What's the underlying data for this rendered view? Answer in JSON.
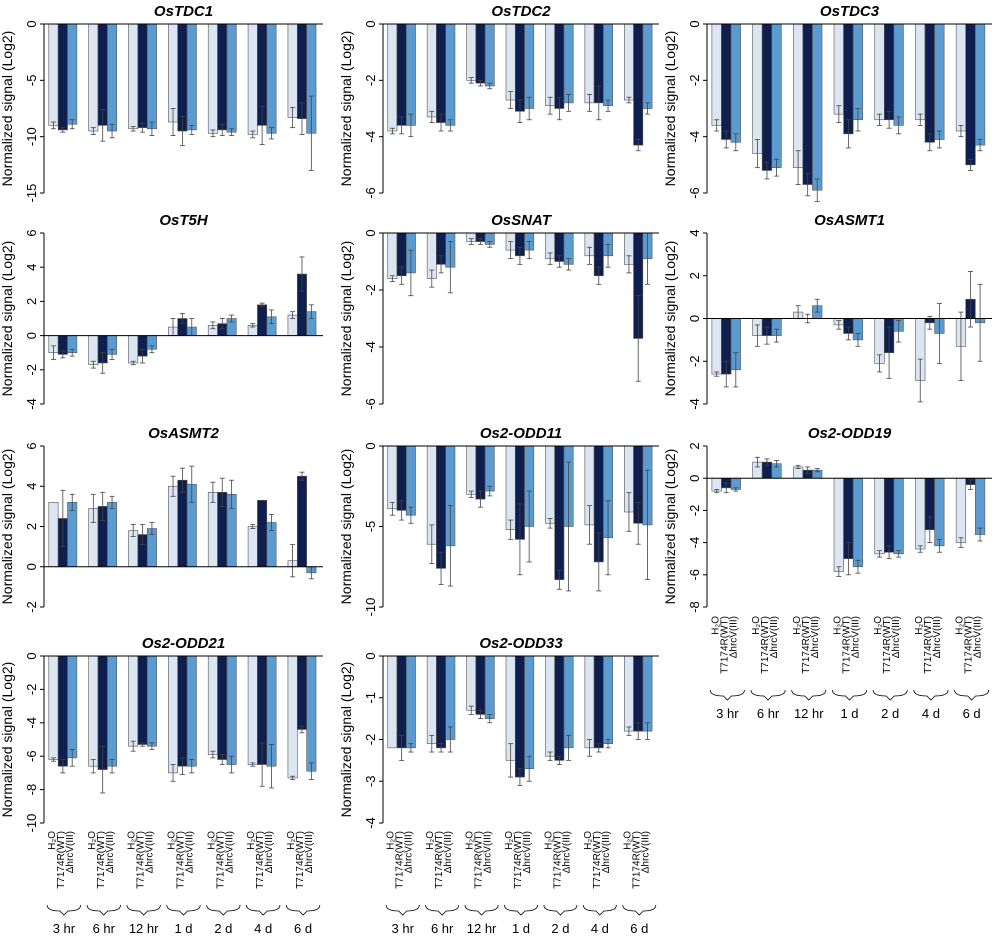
{
  "figure": {
    "colors": {
      "H2O": "#dbe6f2",
      "T7174R_WT": "#0e1f4f",
      "hrcV": "#5b9bd0",
      "border": "#555555",
      "error": "#444444"
    },
    "conditions": [
      "H₂O",
      "T7174R(WT)",
      "ΔhrcV(III)"
    ],
    "timepoints": [
      "3 hr",
      "6 hr",
      "12 hr",
      "1 d",
      "2 d",
      "4 d",
      "6 d"
    ],
    "ylabel": "Normalized signal (Log2)"
  },
  "chart_data": [
    {
      "type": "bar",
      "title": "OsTDC1",
      "ylim": [
        -15,
        0
      ],
      "yticks": [
        0,
        -5,
        -10,
        -15
      ],
      "categories": [
        "3 hr",
        "6 hr",
        "12 hr",
        "1 d",
        "2 d",
        "4 d",
        "6 d"
      ],
      "series": [
        {
          "name": "H2O",
          "values": [
            -9.0,
            -9.5,
            -9.3,
            -8.7,
            -9.7,
            -9.8,
            -8.3
          ],
          "errors": [
            0.3,
            0.3,
            0.2,
            1.2,
            0.3,
            0.3,
            0.9
          ]
        },
        {
          "name": "T7174R(WT)",
          "values": [
            -9.4,
            -9.0,
            -9.2,
            -9.5,
            -9.4,
            -9.0,
            -8.4
          ],
          "errors": [
            0.2,
            1.4,
            0.4,
            1.3,
            0.5,
            1.7,
            1.4
          ]
        },
        {
          "name": "ΔhrcV(III)",
          "values": [
            -8.9,
            -9.5,
            -9.3,
            -9.4,
            -9.6,
            -9.7,
            -9.7
          ],
          "errors": [
            0.4,
            0.6,
            0.6,
            0.4,
            0.3,
            0.5,
            3.3
          ]
        }
      ]
    },
    {
      "type": "bar",
      "title": "OsTDC2",
      "ylim": [
        -6,
        0
      ],
      "yticks": [
        0,
        -2,
        -4,
        -6
      ],
      "categories": [
        "3 hr",
        "6 hr",
        "12 hr",
        "1 d",
        "2 d",
        "4 d",
        "6 d"
      ],
      "series": [
        {
          "name": "H2O",
          "values": [
            -3.8,
            -3.3,
            -2.0,
            -2.7,
            -2.9,
            -2.8,
            -2.7
          ],
          "errors": [
            0.1,
            0.2,
            0.1,
            0.3,
            0.3,
            0.3,
            0.1
          ]
        },
        {
          "name": "T7174R(WT)",
          "values": [
            -3.6,
            -3.5,
            -2.1,
            -3.1,
            -3.0,
            -2.8,
            -4.3
          ],
          "errors": [
            0.3,
            0.3,
            0.1,
            0.4,
            0.4,
            0.6,
            0.2
          ]
        },
        {
          "name": "ΔhrcV(III)",
          "values": [
            -3.6,
            -3.6,
            -2.2,
            -3.0,
            -2.8,
            -2.9,
            -3.0
          ],
          "errors": [
            0.4,
            0.2,
            0.1,
            0.4,
            0.3,
            0.2,
            0.2
          ]
        }
      ]
    },
    {
      "type": "bar",
      "title": "OsTDC3",
      "ylim": [
        -6,
        0
      ],
      "yticks": [
        0,
        -2,
        -4,
        -6
      ],
      "categories": [
        "3 hr",
        "6 hr",
        "12 hr",
        "1 d",
        "2 d",
        "4 d",
        "6 d"
      ],
      "series": [
        {
          "name": "H2O",
          "values": [
            -3.6,
            -4.6,
            -5.1,
            -3.2,
            -3.4,
            -3.4,
            -3.8
          ],
          "errors": [
            0.2,
            0.5,
            0.6,
            0.3,
            0.2,
            0.2,
            0.2
          ]
        },
        {
          "name": "T7174R(WT)",
          "values": [
            -4.1,
            -5.2,
            -5.7,
            -3.9,
            -3.4,
            -4.2,
            -5.0
          ],
          "errors": [
            0.3,
            0.3,
            0.4,
            0.5,
            0.3,
            0.3,
            0.2
          ]
        },
        {
          "name": "ΔhrcV(III)",
          "values": [
            -4.2,
            -5.1,
            -5.9,
            -3.4,
            -3.6,
            -4.1,
            -4.3
          ],
          "errors": [
            0.3,
            0.3,
            0.4,
            0.4,
            0.3,
            0.3,
            0.2
          ]
        }
      ]
    },
    {
      "type": "bar",
      "title": "OsT5H",
      "ylim": [
        -4,
        6
      ],
      "yticks": [
        6,
        4,
        2,
        0,
        -2,
        -4
      ],
      "categories": [
        "3 hr",
        "6 hr",
        "12 hr",
        "1 d",
        "2 d",
        "4 d",
        "6 d"
      ],
      "series": [
        {
          "name": "H2O",
          "values": [
            -1.0,
            -1.7,
            -1.6,
            0.5,
            0.6,
            0.6,
            1.2
          ],
          "errors": [
            0.4,
            0.2,
            0.1,
            0.5,
            0.2,
            0.1,
            0.2
          ]
        },
        {
          "name": "T7174R(WT)",
          "values": [
            -1.1,
            -1.6,
            -1.2,
            1.0,
            0.7,
            1.8,
            3.6
          ],
          "errors": [
            0.2,
            0.6,
            0.4,
            0.3,
            0.3,
            0.1,
            1.0
          ]
        },
        {
          "name": "ΔhrcV(III)",
          "values": [
            -1.0,
            -1.1,
            -0.8,
            0.5,
            1.0,
            1.1,
            1.4
          ],
          "errors": [
            0.2,
            0.3,
            0.2,
            0.5,
            0.2,
            0.4,
            0.4
          ]
        }
      ]
    },
    {
      "type": "bar",
      "title": "OsSNAT",
      "ylim": [
        -6,
        0
      ],
      "yticks": [
        0,
        -2,
        -4,
        -6
      ],
      "categories": [
        "3 hr",
        "6 hr",
        "12 hr",
        "1 d",
        "2 d",
        "4 d",
        "6 d"
      ],
      "series": [
        {
          "name": "H2O",
          "values": [
            -1.6,
            -1.6,
            -0.3,
            -0.6,
            -0.9,
            -0.8,
            -1.1
          ],
          "errors": [
            0.1,
            0.3,
            0.1,
            0.3,
            0.2,
            0.3,
            0.3
          ]
        },
        {
          "name": "T7174R(WT)",
          "values": [
            -1.5,
            -1.1,
            -0.3,
            -0.8,
            -1.0,
            -1.5,
            -3.7
          ],
          "errors": [
            0.3,
            0.3,
            0.1,
            0.3,
            0.2,
            0.3,
            1.5
          ]
        },
        {
          "name": "ΔhrcV(III)",
          "values": [
            -1.4,
            -1.2,
            -0.4,
            -0.6,
            -1.1,
            -0.8,
            -0.9
          ],
          "errors": [
            0.8,
            0.9,
            0.1,
            0.3,
            0.2,
            0.4,
            0.9
          ]
        }
      ]
    },
    {
      "type": "bar",
      "title": "OsASMT1",
      "ylim": [
        -4,
        4
      ],
      "yticks": [
        4,
        2,
        0,
        -2,
        -4
      ],
      "categories": [
        "3 hr",
        "6 hr",
        "12 hr",
        "1 d",
        "2 d",
        "4 d",
        "6 d"
      ],
      "series": [
        {
          "name": "H2O",
          "values": [
            -2.6,
            -0.8,
            0.3,
            -0.3,
            -2.1,
            -2.9,
            -1.3
          ],
          "errors": [
            0.1,
            0.5,
            0.3,
            0.2,
            0.4,
            1.0,
            1.6
          ]
        },
        {
          "name": "T7174R(WT)",
          "values": [
            -2.6,
            -0.8,
            0.0,
            -0.7,
            -1.6,
            -0.2,
            0.9
          ],
          "errors": [
            0.6,
            0.4,
            0.2,
            0.3,
            1.2,
            0.3,
            1.3
          ]
        },
        {
          "name": "ΔhrcV(III)",
          "values": [
            -2.4,
            -0.8,
            0.6,
            -1.0,
            -0.6,
            -0.7,
            -0.2
          ],
          "errors": [
            0.8,
            0.3,
            0.3,
            0.3,
            0.5,
            1.4,
            1.8
          ]
        }
      ]
    },
    {
      "type": "bar",
      "title": "OsASMT2",
      "ylim": [
        -2,
        6
      ],
      "yticks": [
        6,
        4,
        2,
        0,
        -2
      ],
      "categories": [
        "3 hr",
        "6 hr",
        "12 hr",
        "1 d",
        "2 d",
        "4 d",
        "6 d"
      ],
      "series": [
        {
          "name": "H2O",
          "values": [
            3.2,
            2.9,
            1.8,
            4.0,
            3.7,
            2.0,
            0.3
          ],
          "errors": [
            0.0,
            0.7,
            0.3,
            0.5,
            0.5,
            0.1,
            0.8
          ]
        },
        {
          "name": "T7174R(WT)",
          "values": [
            2.4,
            3.0,
            1.6,
            4.3,
            3.7,
            3.3,
            4.5
          ],
          "errors": [
            1.4,
            0.7,
            0.5,
            0.6,
            0.7,
            0.0,
            0.2
          ]
        },
        {
          "name": "ΔhrcV(III)",
          "values": [
            3.2,
            3.2,
            1.9,
            4.1,
            3.6,
            2.2,
            -0.3
          ],
          "errors": [
            0.4,
            0.3,
            0.3,
            0.9,
            0.7,
            0.4,
            0.3
          ]
        }
      ]
    },
    {
      "type": "bar",
      "title": "Os2-ODD11",
      "ylim": [
        -10,
        0
      ],
      "yticks": [
        0,
        -5,
        -10
      ],
      "categories": [
        "3 hr",
        "6 hr",
        "12 hr",
        "1 d",
        "2 d",
        "4 d",
        "6 d"
      ],
      "series": [
        {
          "name": "H2O",
          "values": [
            -3.9,
            -6.1,
            -3.0,
            -5.2,
            -4.8,
            -4.9,
            -4.1
          ],
          "errors": [
            0.4,
            1.2,
            0.2,
            0.6,
            0.3,
            1.2,
            1.2
          ]
        },
        {
          "name": "T7174R(WT)",
          "values": [
            -4.0,
            -7.6,
            -3.3,
            -5.8,
            -8.3,
            -7.2,
            -4.8
          ],
          "errors": [
            0.6,
            1.0,
            0.5,
            2.2,
            0.6,
            1.8,
            1.3
          ]
        },
        {
          "name": "ΔhrcV(III)",
          "values": [
            -4.3,
            -6.2,
            -2.8,
            -5.0,
            -5.0,
            -5.7,
            -4.9
          ],
          "errors": [
            0.5,
            2.5,
            0.3,
            2.2,
            4.0,
            2.3,
            3.4
          ]
        }
      ]
    },
    {
      "type": "bar",
      "title": "Os2-ODD19",
      "ylim": [
        -8,
        2
      ],
      "yticks": [
        2,
        0,
        -2,
        -4,
        -6,
        -8
      ],
      "categories": [
        "3 hr",
        "6 hr",
        "12 hr",
        "1 d",
        "2 d",
        "4 d",
        "6 d"
      ],
      "series": [
        {
          "name": "H2O",
          "values": [
            -0.8,
            1.0,
            0.7,
            -5.8,
            -4.7,
            -4.4,
            -4.0
          ],
          "errors": [
            0.1,
            0.3,
            0.1,
            0.3,
            0.2,
            0.2,
            0.3
          ]
        },
        {
          "name": "T7174R(WT)",
          "values": [
            -0.6,
            1.0,
            0.5,
            -5.0,
            -4.6,
            -3.2,
            -0.4
          ],
          "errors": [
            0.3,
            0.2,
            0.2,
            1.0,
            0.4,
            0.8,
            0.3
          ]
        },
        {
          "name": "ΔhrcV(III)",
          "values": [
            -0.7,
            0.9,
            0.5,
            -5.5,
            -4.7,
            -4.2,
            -3.5
          ],
          "errors": [
            0.1,
            0.2,
            0.1,
            0.4,
            0.2,
            0.4,
            0.4
          ]
        }
      ]
    },
    {
      "type": "bar",
      "title": "Os2-ODD21",
      "ylim": [
        -10,
        0
      ],
      "yticks": [
        0,
        -2,
        -4,
        -6,
        -8,
        -10
      ],
      "categories": [
        "3 hr",
        "6 hr",
        "12 hr",
        "1 d",
        "2 d",
        "4 d",
        "6 d"
      ],
      "series": [
        {
          "name": "H2O",
          "values": [
            -6.2,
            -6.6,
            -5.4,
            -7.0,
            -5.9,
            -6.5,
            -7.3
          ],
          "errors": [
            0.1,
            0.4,
            0.3,
            0.5,
            0.2,
            0.1,
            0.1
          ]
        },
        {
          "name": "T7174R(WT)",
          "values": [
            -6.6,
            -6.8,
            -5.3,
            -6.6,
            -6.2,
            -6.5,
            -4.4
          ],
          "errors": [
            0.4,
            1.4,
            0.1,
            0.5,
            0.3,
            1.3,
            0.2
          ]
        },
        {
          "name": "ΔhrcV(III)",
          "values": [
            -6.1,
            -6.6,
            -5.4,
            -6.6,
            -6.5,
            -6.6,
            -6.9
          ],
          "errors": [
            0.5,
            0.4,
            0.2,
            0.4,
            0.5,
            1.3,
            0.5
          ]
        }
      ]
    },
    {
      "type": "bar",
      "title": "Os2-ODD33",
      "ylim": [
        -4,
        0
      ],
      "yticks": [
        0,
        -1,
        -2,
        -3,
        -4
      ],
      "categories": [
        "3 hr",
        "6 hr",
        "12 hr",
        "1 d",
        "2 d",
        "4 d",
        "6 d"
      ],
      "series": [
        {
          "name": "H2O",
          "values": [
            -2.2,
            -2.1,
            -1.3,
            -2.5,
            -2.4,
            -2.2,
            -1.8
          ],
          "errors": [
            0.0,
            0.2,
            0.1,
            0.4,
            0.1,
            0.2,
            0.1
          ]
        },
        {
          "name": "T7174R(WT)",
          "values": [
            -2.2,
            -2.2,
            -1.4,
            -2.9,
            -2.5,
            -2.2,
            -1.8
          ],
          "errors": [
            0.3,
            0.1,
            0.1,
            0.2,
            0.1,
            0.1,
            0.2
          ]
        },
        {
          "name": "ΔhrcV(III)",
          "values": [
            -2.2,
            -2.0,
            -1.5,
            -2.7,
            -2.2,
            -2.1,
            -1.8
          ],
          "errors": [
            0.1,
            0.3,
            0.1,
            0.3,
            0.3,
            0.1,
            0.2
          ]
        }
      ]
    }
  ]
}
